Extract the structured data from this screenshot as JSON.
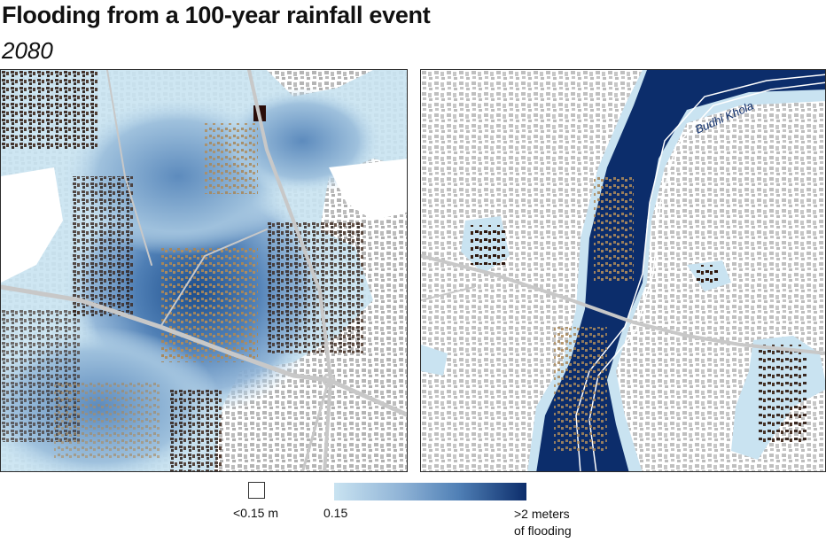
{
  "title": "Flooding from a 100-year rainfall event",
  "subtitle": "2080",
  "panels": {
    "left": {
      "name": "map-left"
    },
    "right": {
      "name": "map-right",
      "river_label": "Budhi Khola"
    }
  },
  "legend": {
    "no_flood_label": "<0.15 m",
    "ramp_min_label": "0.15",
    "ramp_max_line1": ">2 meters",
    "ramp_max_line2": "of flooding",
    "colors": {
      "no_flood": "#ffffff",
      "ramp_low": "#c9e3f1",
      "ramp_mid": "#4f7fb5",
      "ramp_high": "#0c2d6b",
      "road": "#c8c8c8",
      "building_dry": "#b0b0b0",
      "building_flooded_light": "#a6865a",
      "building_flooded_dark": "#2a150c"
    }
  }
}
